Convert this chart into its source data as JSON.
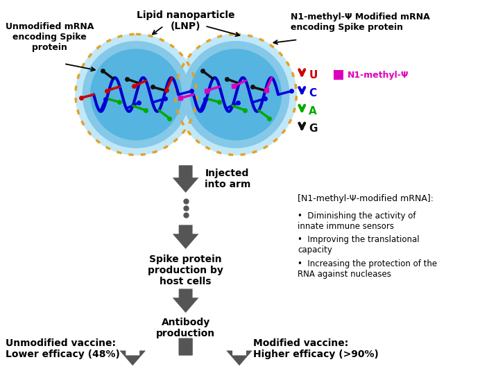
{
  "bg_color": "#ffffff",
  "lnp_title": "Lipid nanoparticle\n(LNP)",
  "left_label": "Unmodified mRNA\nencoding Spike\nprotein",
  "right_label": "N1-methyl-Ψ Modified mRNA\nenco ding Spike protein",
  "inject_text": "Injected\ninto arm",
  "spike_text": "Spike protein\nproduction by\nhost cells",
  "antibody_text": "Antibody\nproduction",
  "unmod_vaccine": "Unmodified vaccine:\nLower efficacy (48%)",
  "mod_vaccine": "Modified vaccine:\nHigher efficacy (>90%)",
  "n1_title": "[N1-methyl-Ψ-modified mRNA]:",
  "n1_bullets": [
    "Diminishing the activity of\ninnate immune sensors",
    "Improving the translational\ncapacity",
    "Increasing the protection of the\nRNA against nucleases"
  ],
  "circle_outer_color": "#e8a020",
  "circle_mid_color": "#b8dff0",
  "circle_inner_color": "#7ec8e8",
  "mrna_color": "#0000cc",
  "arrow_color": "#555555",
  "legend_u_color": "#cc0000",
  "legend_psi_color": "#dd00bb",
  "legend_c_color": "#0000dd",
  "legend_a_color": "#00aa00",
  "legend_g_color": "#111111"
}
